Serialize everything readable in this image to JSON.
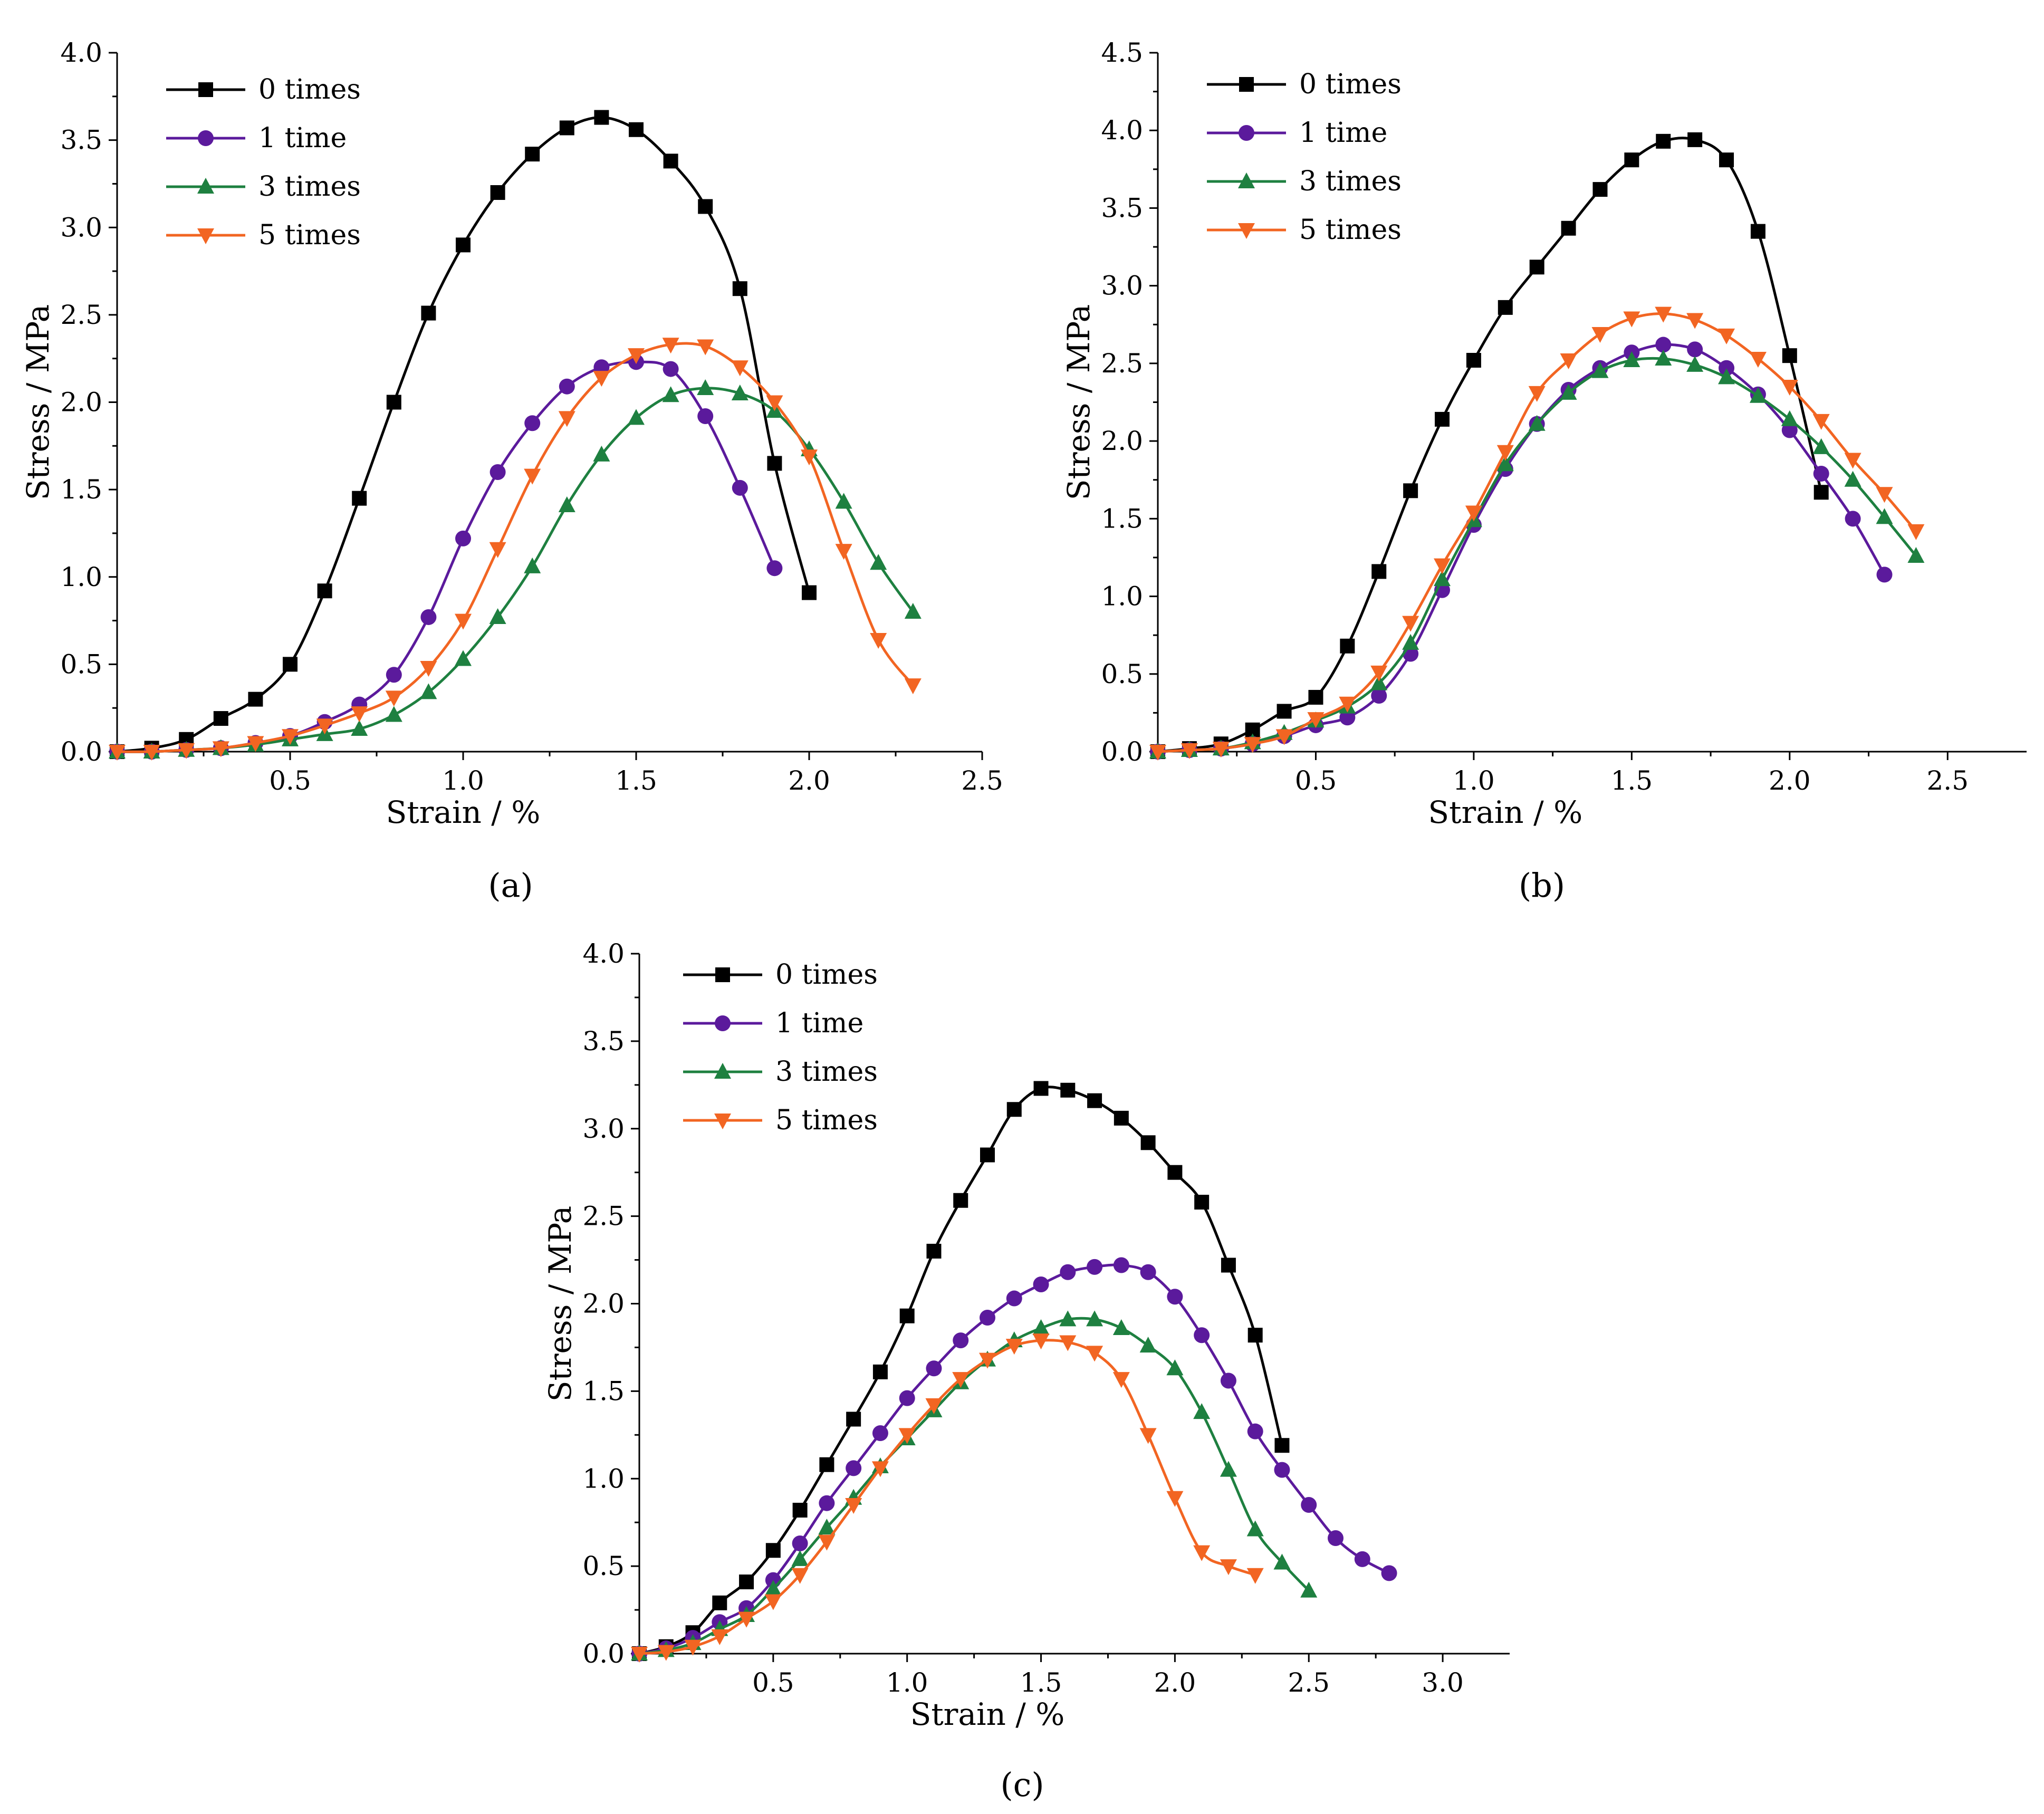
{
  "figure_labels": [
    "(a)",
    "(b)",
    "(c)"
  ],
  "colors": {
    "0 times": "#000000",
    "1 time": "#5b1a9c",
    "3 times": "#1e8040",
    "5 times": "#f26522"
  },
  "chart_data": [
    {
      "type": "line",
      "panel": "a",
      "xlabel": "Strain / %",
      "ylabel": "Stress / MPa",
      "xlim": [
        0,
        2.5
      ],
      "ylim": [
        0,
        4.0
      ],
      "xticks": [
        0.5,
        1.0,
        1.5,
        2.0,
        2.5
      ],
      "yticks": [
        0.0,
        0.5,
        1.0,
        1.5,
        2.0,
        2.5,
        3.0,
        3.5,
        4.0
      ],
      "xtick_labels": [
        "0.5",
        "1.0",
        "1.5",
        "2.0",
        "2.5"
      ],
      "ytick_labels": [
        "0.0",
        "0.5",
        "1.0",
        "1.5",
        "2.0",
        "2.5",
        "3.0",
        "3.5",
        "4.0"
      ],
      "legend_position": "top-left",
      "series": [
        {
          "name": "0 times",
          "marker": "square",
          "x": [
            0,
            0.1,
            0.2,
            0.3,
            0.4,
            0.5,
            0.6,
            0.7,
            0.8,
            0.9,
            1.0,
            1.1,
            1.2,
            1.3,
            1.4,
            1.5,
            1.6,
            1.7,
            1.8,
            1.9,
            2.0
          ],
          "y": [
            0,
            0.02,
            0.07,
            0.19,
            0.3,
            0.5,
            0.92,
            1.45,
            2.0,
            2.51,
            2.9,
            3.2,
            3.42,
            3.57,
            3.63,
            3.56,
            3.38,
            3.12,
            2.65,
            1.65,
            0.91
          ]
        },
        {
          "name": "1 time",
          "marker": "circle",
          "x": [
            0,
            0.1,
            0.2,
            0.3,
            0.4,
            0.5,
            0.6,
            0.7,
            0.8,
            0.9,
            1.0,
            1.1,
            1.2,
            1.3,
            1.4,
            1.5,
            1.6,
            1.7,
            1.8,
            1.9
          ],
          "y": [
            0,
            0.0,
            0.01,
            0.02,
            0.05,
            0.09,
            0.17,
            0.27,
            0.44,
            0.77,
            1.22,
            1.6,
            1.88,
            2.09,
            2.2,
            2.23,
            2.19,
            1.92,
            1.51,
            1.05
          ]
        },
        {
          "name": "3 times",
          "marker": "triangle-up",
          "x": [
            0,
            0.1,
            0.2,
            0.3,
            0.4,
            0.5,
            0.6,
            0.7,
            0.8,
            0.9,
            1.0,
            1.1,
            1.2,
            1.3,
            1.4,
            1.5,
            1.6,
            1.7,
            1.8,
            1.9,
            2.0,
            2.1,
            2.2,
            2.3
          ],
          "y": [
            0,
            0.0,
            0.01,
            0.02,
            0.04,
            0.07,
            0.1,
            0.13,
            0.21,
            0.34,
            0.53,
            0.77,
            1.06,
            1.41,
            1.7,
            1.91,
            2.04,
            2.08,
            2.05,
            1.95,
            1.73,
            1.43,
            1.08,
            0.8
          ]
        },
        {
          "name": "5 times",
          "marker": "triangle-down",
          "x": [
            0,
            0.1,
            0.2,
            0.3,
            0.4,
            0.5,
            0.6,
            0.7,
            0.8,
            0.9,
            1.0,
            1.1,
            1.2,
            1.3,
            1.4,
            1.5,
            1.6,
            1.7,
            1.8,
            1.9,
            2.0,
            2.1,
            2.2,
            2.3
          ],
          "y": [
            0,
            0.0,
            0.01,
            0.02,
            0.05,
            0.09,
            0.15,
            0.22,
            0.31,
            0.48,
            0.75,
            1.16,
            1.58,
            1.91,
            2.14,
            2.27,
            2.33,
            2.32,
            2.2,
            2.0,
            1.69,
            1.15,
            0.64,
            0.38
          ]
        }
      ]
    },
    {
      "type": "line",
      "panel": "b",
      "xlabel": "Strain / %",
      "ylabel": "Stress / MPa",
      "xlim": [
        0,
        2.75
      ],
      "ylim": [
        0,
        4.5
      ],
      "xticks": [
        0.5,
        1.0,
        1.5,
        2.0,
        2.5
      ],
      "yticks": [
        0.0,
        0.5,
        1.0,
        1.5,
        2.0,
        2.5,
        3.0,
        3.5,
        4.0,
        4.5
      ],
      "xtick_labels": [
        "0.5",
        "1.0",
        "1.5",
        "2.0",
        "2.5"
      ],
      "ytick_labels": [
        "0.0",
        "0.5",
        "1.0",
        "1.5",
        "2.0",
        "2.5",
        "3.0",
        "3.5",
        "4.0",
        "4.5"
      ],
      "legend_position": "top-left",
      "series": [
        {
          "name": "0 times",
          "marker": "square",
          "x": [
            0,
            0.1,
            0.2,
            0.3,
            0.4,
            0.5,
            0.6,
            0.7,
            0.8,
            0.9,
            1.0,
            1.1,
            1.2,
            1.3,
            1.4,
            1.5,
            1.6,
            1.7,
            1.8,
            1.9,
            2.0,
            2.1
          ],
          "y": [
            0,
            0.02,
            0.05,
            0.14,
            0.26,
            0.35,
            0.68,
            1.16,
            1.68,
            2.14,
            2.52,
            2.86,
            3.12,
            3.37,
            3.62,
            3.81,
            3.93,
            3.94,
            3.81,
            3.35,
            2.55,
            1.67
          ]
        },
        {
          "name": "1 time",
          "marker": "circle",
          "x": [
            0,
            0.1,
            0.2,
            0.3,
            0.4,
            0.5,
            0.6,
            0.7,
            0.8,
            0.9,
            1.0,
            1.1,
            1.2,
            1.3,
            1.4,
            1.5,
            1.6,
            1.7,
            1.8,
            1.9,
            2.0,
            2.1,
            2.2,
            2.3
          ],
          "y": [
            0,
            0.01,
            0.02,
            0.05,
            0.1,
            0.17,
            0.22,
            0.36,
            0.63,
            1.04,
            1.46,
            1.82,
            2.11,
            2.33,
            2.47,
            2.57,
            2.62,
            2.59,
            2.47,
            2.3,
            2.07,
            1.79,
            1.5,
            1.14
          ]
        },
        {
          "name": "3 times",
          "marker": "triangle-up",
          "x": [
            0,
            0.1,
            0.2,
            0.3,
            0.4,
            0.5,
            0.6,
            0.7,
            0.8,
            0.9,
            1.0,
            1.1,
            1.2,
            1.3,
            1.4,
            1.5,
            1.6,
            1.7,
            1.8,
            1.9,
            2.0,
            2.1,
            2.2,
            2.3,
            2.4
          ],
          "y": [
            0,
            0.01,
            0.02,
            0.06,
            0.12,
            0.2,
            0.29,
            0.44,
            0.7,
            1.11,
            1.49,
            1.85,
            2.11,
            2.31,
            2.45,
            2.52,
            2.53,
            2.49,
            2.41,
            2.29,
            2.14,
            1.96,
            1.75,
            1.51,
            1.26
          ]
        },
        {
          "name": "5 times",
          "marker": "triangle-down",
          "x": [
            0,
            0.1,
            0.2,
            0.3,
            0.4,
            0.5,
            0.6,
            0.7,
            0.8,
            0.9,
            1.0,
            1.1,
            1.2,
            1.3,
            1.4,
            1.5,
            1.6,
            1.7,
            1.8,
            1.9,
            2.0,
            2.1,
            2.2,
            2.3,
            2.4
          ],
          "y": [
            0,
            0.01,
            0.02,
            0.05,
            0.1,
            0.21,
            0.31,
            0.51,
            0.83,
            1.2,
            1.54,
            1.93,
            2.31,
            2.52,
            2.69,
            2.79,
            2.82,
            2.78,
            2.68,
            2.53,
            2.35,
            2.13,
            1.88,
            1.66,
            1.42
          ]
        }
      ]
    },
    {
      "type": "line",
      "panel": "c",
      "xlabel": "Strain / %",
      "ylabel": "Stress / MPa",
      "xlim": [
        0,
        3.25
      ],
      "ylim": [
        0,
        4.0
      ],
      "xticks": [
        0.5,
        1.0,
        1.5,
        2.0,
        2.5,
        3.0
      ],
      "yticks": [
        0.0,
        0.5,
        1.0,
        1.5,
        2.0,
        2.5,
        3.0,
        3.5,
        4.0
      ],
      "xtick_labels": [
        "0.5",
        "1.0",
        "1.5",
        "2.0",
        "2.5",
        "3.0"
      ],
      "ytick_labels": [
        "0.0",
        "0.5",
        "1.0",
        "1.5",
        "2.0",
        "2.5",
        "3.0",
        "3.5",
        "4.0"
      ],
      "legend_position": "top-left",
      "series": [
        {
          "name": "0 times",
          "marker": "square",
          "x": [
            0,
            0.1,
            0.2,
            0.3,
            0.4,
            0.5,
            0.6,
            0.7,
            0.8,
            0.9,
            1.0,
            1.1,
            1.2,
            1.3,
            1.4,
            1.5,
            1.6,
            1.7,
            1.8,
            1.9,
            2.0,
            2.1,
            2.2,
            2.3,
            2.4
          ],
          "y": [
            0,
            0.04,
            0.12,
            0.29,
            0.41,
            0.59,
            0.82,
            1.08,
            1.34,
            1.61,
            1.93,
            2.3,
            2.59,
            2.85,
            3.11,
            3.23,
            3.22,
            3.16,
            3.06,
            2.92,
            2.75,
            2.58,
            2.22,
            1.82,
            1.19
          ]
        },
        {
          "name": "1 time",
          "marker": "circle",
          "x": [
            0,
            0.1,
            0.2,
            0.3,
            0.4,
            0.5,
            0.6,
            0.7,
            0.8,
            0.9,
            1.0,
            1.1,
            1.2,
            1.3,
            1.4,
            1.5,
            1.6,
            1.7,
            1.8,
            1.9,
            2.0,
            2.1,
            2.2,
            2.3,
            2.4,
            2.5,
            2.6,
            2.7,
            2.8
          ],
          "y": [
            0,
            0.03,
            0.09,
            0.18,
            0.26,
            0.42,
            0.63,
            0.86,
            1.06,
            1.26,
            1.46,
            1.63,
            1.79,
            1.92,
            2.03,
            2.11,
            2.18,
            2.21,
            2.22,
            2.18,
            2.04,
            1.82,
            1.56,
            1.27,
            1.05,
            0.85,
            0.66,
            0.54,
            0.46
          ]
        },
        {
          "name": "3 times",
          "marker": "triangle-up",
          "x": [
            0,
            0.1,
            0.2,
            0.3,
            0.4,
            0.5,
            0.6,
            0.7,
            0.8,
            0.9,
            1.0,
            1.1,
            1.2,
            1.3,
            1.4,
            1.5,
            1.6,
            1.7,
            1.8,
            1.9,
            2.0,
            2.1,
            2.2,
            2.3,
            2.4,
            2.5
          ],
          "y": [
            0,
            0.02,
            0.06,
            0.14,
            0.22,
            0.37,
            0.54,
            0.72,
            0.89,
            1.07,
            1.23,
            1.39,
            1.55,
            1.68,
            1.79,
            1.86,
            1.91,
            1.91,
            1.86,
            1.76,
            1.63,
            1.38,
            1.05,
            0.71,
            0.52,
            0.36
          ]
        },
        {
          "name": "5 times",
          "marker": "triangle-down",
          "x": [
            0,
            0.1,
            0.2,
            0.3,
            0.4,
            0.5,
            0.6,
            0.7,
            0.8,
            0.9,
            1.0,
            1.1,
            1.2,
            1.3,
            1.4,
            1.5,
            1.6,
            1.7,
            1.8,
            1.9,
            2.0,
            2.1,
            2.2,
            2.3
          ],
          "y": [
            0,
            0.01,
            0.04,
            0.1,
            0.2,
            0.3,
            0.45,
            0.64,
            0.85,
            1.06,
            1.25,
            1.42,
            1.57,
            1.68,
            1.76,
            1.79,
            1.78,
            1.72,
            1.57,
            1.25,
            0.89,
            0.58,
            0.5,
            0.45
          ]
        }
      ]
    }
  ]
}
